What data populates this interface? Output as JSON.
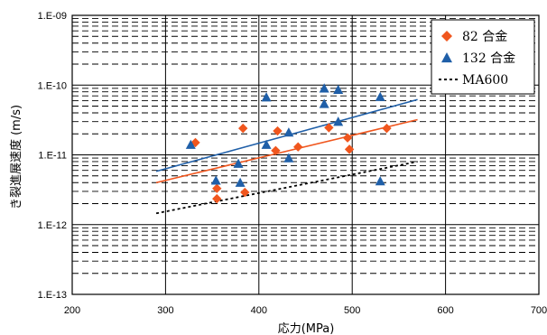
{
  "chart_data": {
    "type": "scatter",
    "xlabel": "応力(MPa)",
    "ylabel": "き裂進展速度 (m/s)",
    "xlim": [
      200,
      700
    ],
    "ylim": [
      1e-13,
      1e-09
    ],
    "yscale": "log",
    "x_ticks": [
      "200",
      "300",
      "400",
      "500",
      "600",
      "700"
    ],
    "y_ticks": [
      "1.E-13",
      "1.E-12",
      "1.E-11",
      "1.E-10",
      "1.E-09"
    ],
    "grid": true,
    "legend_position": "top-right",
    "series": [
      {
        "name": "82 合金",
        "marker": "diamond",
        "color": "#f0561e",
        "points": [
          [
            332,
            1.5e-11
          ],
          [
            355,
            3.3e-12
          ],
          [
            355,
            2.35e-12
          ],
          [
            383,
            2.4e-11
          ],
          [
            385,
            2.9e-12
          ],
          [
            418,
            1.15e-11
          ],
          [
            420,
            2.2e-11
          ],
          [
            442,
            1.3e-11
          ],
          [
            475,
            2.45e-11
          ],
          [
            495,
            1.75e-11
          ],
          [
            497,
            1.2e-11
          ],
          [
            537,
            2.4e-11
          ]
        ],
        "trend": {
          "x": [
            290,
            570
          ],
          "y": [
            4e-12,
            3.2e-11
          ]
        }
      },
      {
        "name": "132 合金",
        "marker": "triangle",
        "color": "#1f5fa8",
        "points": [
          [
            327,
            1.4e-11
          ],
          [
            354,
            4.3e-12
          ],
          [
            378,
            7.5e-12
          ],
          [
            380,
            4e-12
          ],
          [
            408,
            6.7e-11
          ],
          [
            408,
            1.4e-11
          ],
          [
            432,
            2.1e-11
          ],
          [
            432,
            9e-12
          ],
          [
            470,
            9e-11
          ],
          [
            470,
            5.4e-11
          ],
          [
            485,
            8.6e-11
          ],
          [
            485,
            3e-11
          ],
          [
            530,
            6.8e-11
          ],
          [
            530,
            4.2e-12
          ]
        ],
        "trend": {
          "x": [
            290,
            570
          ],
          "y": [
            5.8e-12,
            6.2e-11
          ]
        }
      },
      {
        "name": "MA600",
        "marker": "none",
        "color": "#000000",
        "line": "dotted",
        "trend": {
          "x": [
            290,
            570
          ],
          "y": [
            1.45e-12,
            8e-12
          ]
        }
      }
    ]
  }
}
